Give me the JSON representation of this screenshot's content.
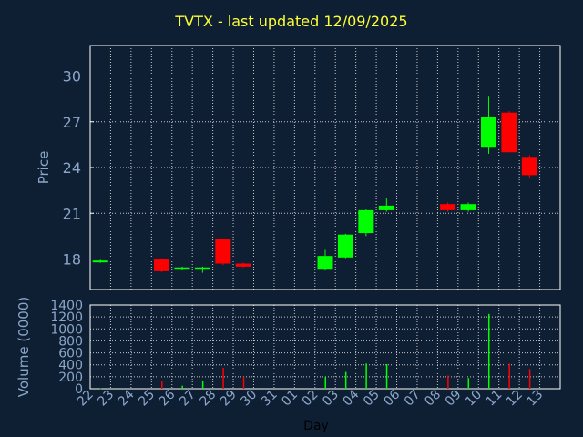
{
  "chart_data": [
    {
      "type": "candlestick",
      "title": "TVTX - last updated 12/09/2025",
      "ylabel": "Price",
      "ylim": [
        16,
        32
      ],
      "yticks": [
        18,
        21,
        24,
        27,
        30
      ],
      "grid": true,
      "categories": [
        "22",
        "23",
        "24",
        "25",
        "26",
        "27",
        "28",
        "29",
        "30",
        "31",
        "01",
        "02",
        "03",
        "04",
        "05",
        "06",
        "07",
        "08",
        "09",
        "10",
        "11",
        "12",
        "13"
      ],
      "candles": [
        {
          "day": "22",
          "open": 17.8,
          "close": 17.9,
          "high": 17.95,
          "low": 17.75
        },
        {
          "day": "25",
          "open": 18.0,
          "close": 17.2,
          "high": 18.05,
          "low": 17.15
        },
        {
          "day": "26",
          "open": 17.3,
          "close": 17.45,
          "high": 17.5,
          "low": 17.25
        },
        {
          "day": "27",
          "open": 17.3,
          "close": 17.45,
          "high": 17.5,
          "low": 17.1
        },
        {
          "day": "28",
          "open": 19.3,
          "close": 17.7,
          "high": 19.3,
          "low": 17.6
        },
        {
          "day": "29",
          "open": 17.7,
          "close": 17.5,
          "high": 17.75,
          "low": 17.45
        },
        {
          "day": "02",
          "open": 17.3,
          "close": 18.2,
          "high": 18.6,
          "low": 17.25
        },
        {
          "day": "03",
          "open": 18.1,
          "close": 19.6,
          "high": 19.65,
          "low": 18.05
        },
        {
          "day": "04",
          "open": 19.7,
          "close": 21.2,
          "high": 21.25,
          "low": 19.5
        },
        {
          "day": "05",
          "open": 21.2,
          "close": 21.5,
          "high": 22.0,
          "low": 21.1
        },
        {
          "day": "08",
          "open": 21.6,
          "close": 21.2,
          "high": 21.7,
          "low": 21.1
        },
        {
          "day": "09",
          "open": 21.2,
          "close": 21.6,
          "high": 21.7,
          "low": 21.1
        },
        {
          "day": "10",
          "open": 25.3,
          "close": 27.3,
          "high": 28.7,
          "low": 24.9
        },
        {
          "day": "11",
          "open": 27.6,
          "close": 25.0,
          "high": 27.7,
          "low": 25.0
        },
        {
          "day": "12",
          "open": 24.7,
          "close": 23.5,
          "high": 24.8,
          "low": 23.3
        }
      ]
    },
    {
      "type": "bar",
      "xlabel": "Day",
      "ylabel": "Volume (0000)",
      "ylim": [
        0,
        1400
      ],
      "yticks": [
        0,
        200,
        400,
        600,
        800,
        1000,
        1200,
        1400
      ],
      "grid": true,
      "categories": [
        "22",
        "23",
        "24",
        "25",
        "26",
        "27",
        "28",
        "29",
        "30",
        "31",
        "01",
        "02",
        "03",
        "04",
        "05",
        "06",
        "07",
        "08",
        "09",
        "10",
        "11",
        "12",
        "13"
      ],
      "bars": [
        {
          "day": "22",
          "value": 5,
          "direction": "up"
        },
        {
          "day": "25",
          "value": 120,
          "direction": "down"
        },
        {
          "day": "26",
          "value": 50,
          "direction": "up"
        },
        {
          "day": "27",
          "value": 130,
          "direction": "up"
        },
        {
          "day": "28",
          "value": 350,
          "direction": "down"
        },
        {
          "day": "29",
          "value": 200,
          "direction": "down"
        },
        {
          "day": "02",
          "value": 200,
          "direction": "up"
        },
        {
          "day": "03",
          "value": 280,
          "direction": "up"
        },
        {
          "day": "04",
          "value": 420,
          "direction": "up"
        },
        {
          "day": "05",
          "value": 410,
          "direction": "up"
        },
        {
          "day": "08",
          "value": 220,
          "direction": "down"
        },
        {
          "day": "09",
          "value": 180,
          "direction": "up"
        },
        {
          "day": "10",
          "value": 1250,
          "direction": "up"
        },
        {
          "day": "11",
          "value": 420,
          "direction": "down"
        },
        {
          "day": "12",
          "value": 330,
          "direction": "down"
        }
      ]
    }
  ],
  "colors": {
    "background": "#0f1f33",
    "up": "#00ff00",
    "down": "#ff0000",
    "axis": "#ffffff",
    "grid": "#c8c8c8",
    "tick_label": "#8aa6c8",
    "title": "#ffff33"
  }
}
